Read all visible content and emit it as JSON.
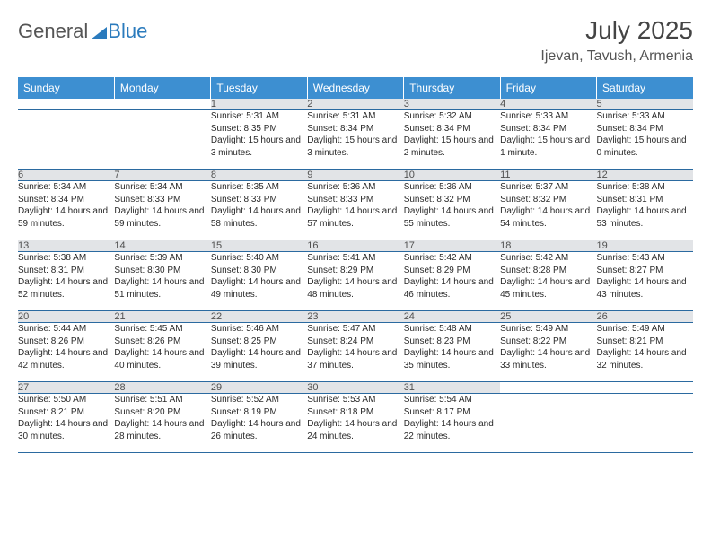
{
  "brand": {
    "part1": "General",
    "part2": "Blue"
  },
  "title": "July 2025",
  "location": "Ijevan, Tavush, Armenia",
  "colors": {
    "header_bg": "#3d8fd1",
    "header_text": "#ffffff",
    "daynum_bg": "#e2e4e7",
    "daynum_text": "#505050",
    "cell_text": "#2a2a2a",
    "line": "#2b6aa0",
    "brand_blue": "#2b7bbd",
    "brand_gray": "#555555",
    "page_bg": "#ffffff"
  },
  "typography": {
    "title_fontsize": 28,
    "location_fontsize": 16,
    "weekday_fontsize": 12,
    "daynum_fontsize": 11,
    "cell_fontsize": 10
  },
  "weekdays": [
    "Sunday",
    "Monday",
    "Tuesday",
    "Wednesday",
    "Thursday",
    "Friday",
    "Saturday"
  ],
  "weeks": [
    [
      null,
      null,
      {
        "n": "1",
        "sr": "Sunrise: 5:31 AM",
        "ss": "Sunset: 8:35 PM",
        "dl": "Daylight: 15 hours and 3 minutes."
      },
      {
        "n": "2",
        "sr": "Sunrise: 5:31 AM",
        "ss": "Sunset: 8:34 PM",
        "dl": "Daylight: 15 hours and 3 minutes."
      },
      {
        "n": "3",
        "sr": "Sunrise: 5:32 AM",
        "ss": "Sunset: 8:34 PM",
        "dl": "Daylight: 15 hours and 2 minutes."
      },
      {
        "n": "4",
        "sr": "Sunrise: 5:33 AM",
        "ss": "Sunset: 8:34 PM",
        "dl": "Daylight: 15 hours and 1 minute."
      },
      {
        "n": "5",
        "sr": "Sunrise: 5:33 AM",
        "ss": "Sunset: 8:34 PM",
        "dl": "Daylight: 15 hours and 0 minutes."
      }
    ],
    [
      {
        "n": "6",
        "sr": "Sunrise: 5:34 AM",
        "ss": "Sunset: 8:34 PM",
        "dl": "Daylight: 14 hours and 59 minutes."
      },
      {
        "n": "7",
        "sr": "Sunrise: 5:34 AM",
        "ss": "Sunset: 8:33 PM",
        "dl": "Daylight: 14 hours and 59 minutes."
      },
      {
        "n": "8",
        "sr": "Sunrise: 5:35 AM",
        "ss": "Sunset: 8:33 PM",
        "dl": "Daylight: 14 hours and 58 minutes."
      },
      {
        "n": "9",
        "sr": "Sunrise: 5:36 AM",
        "ss": "Sunset: 8:33 PM",
        "dl": "Daylight: 14 hours and 57 minutes."
      },
      {
        "n": "10",
        "sr": "Sunrise: 5:36 AM",
        "ss": "Sunset: 8:32 PM",
        "dl": "Daylight: 14 hours and 55 minutes."
      },
      {
        "n": "11",
        "sr": "Sunrise: 5:37 AM",
        "ss": "Sunset: 8:32 PM",
        "dl": "Daylight: 14 hours and 54 minutes."
      },
      {
        "n": "12",
        "sr": "Sunrise: 5:38 AM",
        "ss": "Sunset: 8:31 PM",
        "dl": "Daylight: 14 hours and 53 minutes."
      }
    ],
    [
      {
        "n": "13",
        "sr": "Sunrise: 5:38 AM",
        "ss": "Sunset: 8:31 PM",
        "dl": "Daylight: 14 hours and 52 minutes."
      },
      {
        "n": "14",
        "sr": "Sunrise: 5:39 AM",
        "ss": "Sunset: 8:30 PM",
        "dl": "Daylight: 14 hours and 51 minutes."
      },
      {
        "n": "15",
        "sr": "Sunrise: 5:40 AM",
        "ss": "Sunset: 8:30 PM",
        "dl": "Daylight: 14 hours and 49 minutes."
      },
      {
        "n": "16",
        "sr": "Sunrise: 5:41 AM",
        "ss": "Sunset: 8:29 PM",
        "dl": "Daylight: 14 hours and 48 minutes."
      },
      {
        "n": "17",
        "sr": "Sunrise: 5:42 AM",
        "ss": "Sunset: 8:29 PM",
        "dl": "Daylight: 14 hours and 46 minutes."
      },
      {
        "n": "18",
        "sr": "Sunrise: 5:42 AM",
        "ss": "Sunset: 8:28 PM",
        "dl": "Daylight: 14 hours and 45 minutes."
      },
      {
        "n": "19",
        "sr": "Sunrise: 5:43 AM",
        "ss": "Sunset: 8:27 PM",
        "dl": "Daylight: 14 hours and 43 minutes."
      }
    ],
    [
      {
        "n": "20",
        "sr": "Sunrise: 5:44 AM",
        "ss": "Sunset: 8:26 PM",
        "dl": "Daylight: 14 hours and 42 minutes."
      },
      {
        "n": "21",
        "sr": "Sunrise: 5:45 AM",
        "ss": "Sunset: 8:26 PM",
        "dl": "Daylight: 14 hours and 40 minutes."
      },
      {
        "n": "22",
        "sr": "Sunrise: 5:46 AM",
        "ss": "Sunset: 8:25 PM",
        "dl": "Daylight: 14 hours and 39 minutes."
      },
      {
        "n": "23",
        "sr": "Sunrise: 5:47 AM",
        "ss": "Sunset: 8:24 PM",
        "dl": "Daylight: 14 hours and 37 minutes."
      },
      {
        "n": "24",
        "sr": "Sunrise: 5:48 AM",
        "ss": "Sunset: 8:23 PM",
        "dl": "Daylight: 14 hours and 35 minutes."
      },
      {
        "n": "25",
        "sr": "Sunrise: 5:49 AM",
        "ss": "Sunset: 8:22 PM",
        "dl": "Daylight: 14 hours and 33 minutes."
      },
      {
        "n": "26",
        "sr": "Sunrise: 5:49 AM",
        "ss": "Sunset: 8:21 PM",
        "dl": "Daylight: 14 hours and 32 minutes."
      }
    ],
    [
      {
        "n": "27",
        "sr": "Sunrise: 5:50 AM",
        "ss": "Sunset: 8:21 PM",
        "dl": "Daylight: 14 hours and 30 minutes."
      },
      {
        "n": "28",
        "sr": "Sunrise: 5:51 AM",
        "ss": "Sunset: 8:20 PM",
        "dl": "Daylight: 14 hours and 28 minutes."
      },
      {
        "n": "29",
        "sr": "Sunrise: 5:52 AM",
        "ss": "Sunset: 8:19 PM",
        "dl": "Daylight: 14 hours and 26 minutes."
      },
      {
        "n": "30",
        "sr": "Sunrise: 5:53 AM",
        "ss": "Sunset: 8:18 PM",
        "dl": "Daylight: 14 hours and 24 minutes."
      },
      {
        "n": "31",
        "sr": "Sunrise: 5:54 AM",
        "ss": "Sunset: 8:17 PM",
        "dl": "Daylight: 14 hours and 22 minutes."
      },
      null,
      null
    ]
  ]
}
